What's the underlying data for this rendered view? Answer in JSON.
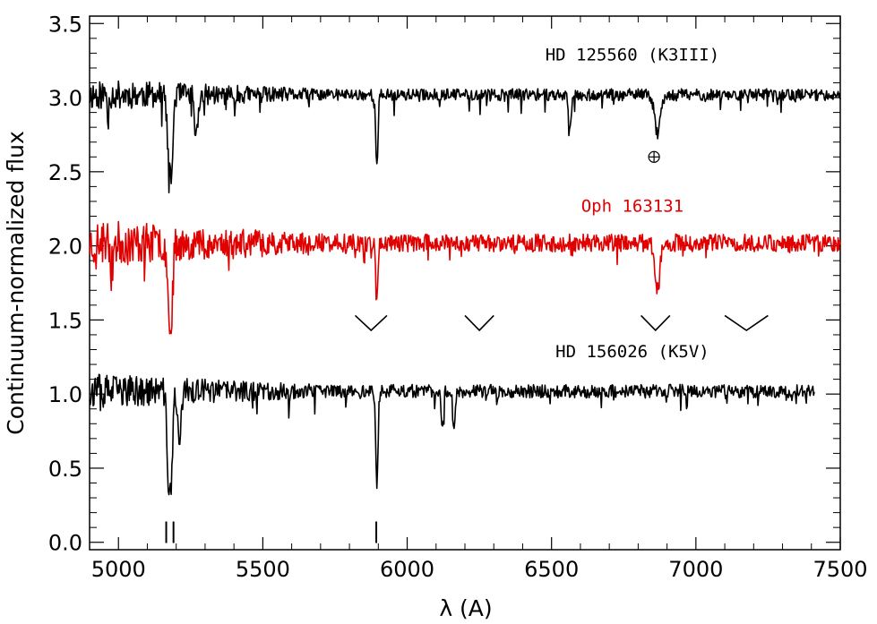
{
  "chart_data": {
    "type": "line",
    "title": "",
    "xlabel": "λ (A)",
    "ylabel": "Continuum-normalized flux",
    "xlim": [
      4900,
      7500
    ],
    "ylim": [
      -0.05,
      3.55
    ],
    "x_ticks": [
      5000,
      5500,
      6000,
      6500,
      7000,
      7500
    ],
    "x_tick_labels": [
      "5000",
      "5500",
      "6000",
      "6500",
      "7000",
      "7500"
    ],
    "y_ticks": [
      0.0,
      0.5,
      1.0,
      1.5,
      2.0,
      2.5,
      3.0,
      3.5
    ],
    "y_tick_labels": [
      "0.0",
      "0.5",
      "1.0",
      "1.5",
      "2.0",
      "2.5",
      "3.0",
      "3.5"
    ],
    "series": [
      {
        "name": "HD 125560 (K3III)",
        "color": "#000000",
        "label_pos": [
          6780,
          3.25
        ],
        "x_range": [
          4900,
          7500
        ],
        "base": 3.02,
        "noise": 0.04,
        "seed": 11,
        "lines": [
          {
            "x": 5175,
            "depth": 0.45,
            "width": 6
          },
          {
            "x": 5185,
            "depth": 0.4,
            "width": 5
          },
          {
            "x": 5270,
            "depth": 0.28,
            "width": 6
          },
          {
            "x": 5895,
            "depth": 0.5,
            "width": 4
          },
          {
            "x": 6563,
            "depth": 0.2,
            "width": 5
          },
          {
            "x": 6867,
            "depth": 0.26,
            "width": 10
          }
        ]
      },
      {
        "name": "Oph 163131",
        "color": "#e00000",
        "label_pos": [
          6780,
          2.23
        ],
        "x_range": [
          4900,
          7500
        ],
        "base": 2.02,
        "noise": 0.06,
        "seed": 23,
        "lines": [
          {
            "x": 5175,
            "depth": 0.42,
            "width": 6
          },
          {
            "x": 5185,
            "depth": 0.35,
            "width": 5
          },
          {
            "x": 5895,
            "depth": 0.4,
            "width": 4
          },
          {
            "x": 6867,
            "depth": 0.32,
            "width": 8
          }
        ]
      },
      {
        "name": "HD 156026 (K5V)",
        "color": "#000000",
        "label_pos": [
          6780,
          1.25
        ],
        "x_range": [
          4900,
          7410
        ],
        "base": 1.02,
        "noise": 0.045,
        "seed": 37,
        "lines": [
          {
            "x": 5172,
            "depth": 0.55,
            "width": 5
          },
          {
            "x": 5183,
            "depth": 0.58,
            "width": 5
          },
          {
            "x": 5210,
            "depth": 0.35,
            "width": 6
          },
          {
            "x": 5895,
            "depth": 0.65,
            "width": 4
          },
          {
            "x": 6122,
            "depth": 0.25,
            "width": 4
          },
          {
            "x": 6162,
            "depth": 0.28,
            "width": 4
          }
        ]
      }
    ],
    "annotations": [
      {
        "text": "⊕",
        "x": 6855,
        "y": 2.6,
        "kind": "telluric-symbol"
      },
      {
        "text": "||",
        "x": 5178,
        "y": 0.03,
        "kind": "mg-b-marker"
      },
      {
        "text": "|",
        "x": 5893,
        "y": 0.03,
        "kind": "na-d-marker"
      }
    ],
    "v_markers": [
      {
        "x1": 5820,
        "x2": 5930,
        "y_top": 1.53,
        "y_bottom": 1.43
      },
      {
        "x1": 6200,
        "x2": 6300,
        "y_top": 1.53,
        "y_bottom": 1.43
      },
      {
        "x1": 6810,
        "x2": 6910,
        "y_top": 1.53,
        "y_bottom": 1.43
      },
      {
        "x1": 7100,
        "x2": 7250,
        "y_top": 1.53,
        "y_bottom": 1.43
      }
    ]
  }
}
